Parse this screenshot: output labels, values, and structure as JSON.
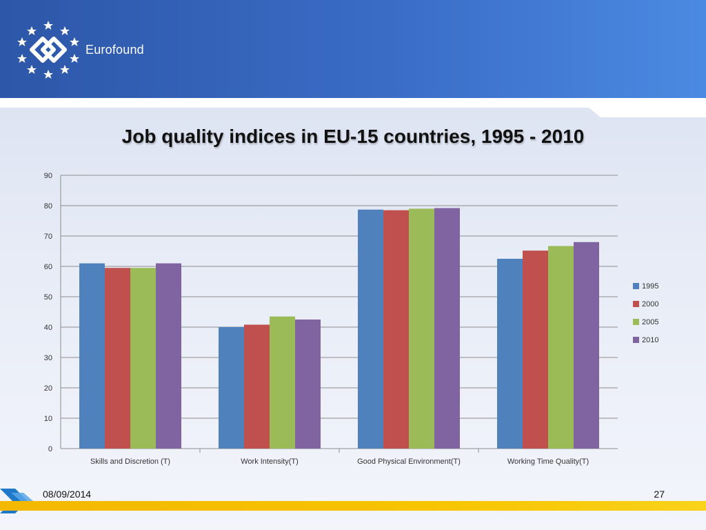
{
  "brand": {
    "name": "Eurofound"
  },
  "slide": {
    "title": "Job quality indices in EU-15 countries, 1995 - 2010"
  },
  "footer": {
    "date": "08/09/2014",
    "page": "27"
  },
  "colors": {
    "header": "#3a6cc6",
    "accent_yellow": "#f7c400",
    "s1995": "#4f81bd",
    "s2000": "#c0504d",
    "s2005": "#9bbb59",
    "s2010": "#8064a2",
    "grid": "#8c8c8c"
  },
  "chart_data": {
    "type": "bar",
    "title": "",
    "xlabel": "",
    "ylabel": "",
    "ylim": [
      0,
      90
    ],
    "yticks": [
      0,
      10,
      20,
      30,
      40,
      50,
      60,
      70,
      80,
      90
    ],
    "grid": true,
    "legend": "right",
    "categories": [
      "Skills and Discretion (T)",
      "Work Intensity(T)",
      "Good Physical Environment(T)",
      "Working Time Quality(T)"
    ],
    "series": [
      {
        "name": "1995",
        "color": "#4f81bd",
        "values": [
          61,
          40,
          78.7,
          62.5
        ]
      },
      {
        "name": "2000",
        "color": "#c0504d",
        "values": [
          59.5,
          40.8,
          78.5,
          65.2
        ]
      },
      {
        "name": "2005",
        "color": "#9bbb59",
        "values": [
          59.5,
          43.5,
          79,
          66.7
        ]
      },
      {
        "name": "2010",
        "color": "#8064a2",
        "values": [
          61,
          42.5,
          79.2,
          68
        ]
      }
    ]
  }
}
